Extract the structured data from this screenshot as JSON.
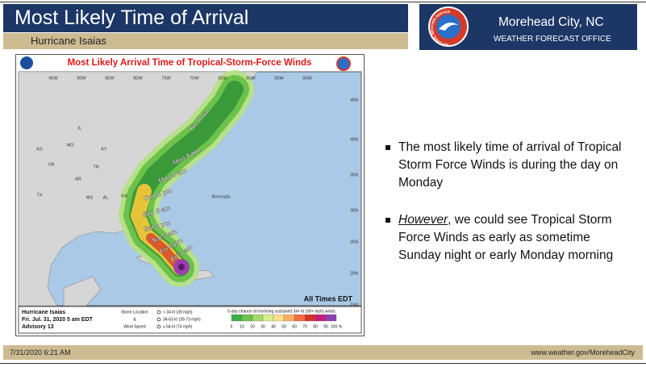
{
  "header": {
    "title": "Most Likely Time of Arrival",
    "subtitle": "Hurricane Isaias",
    "logo_text": "NATIONAL WEATHER SERVICE",
    "office_name": "Morehead City, NC",
    "office_type": "WEATHER FORECAST OFFICE"
  },
  "map": {
    "title": "Most Likely Arrival Time of Tropical-Storm-Force Winds",
    "lon_labels": [
      "95W",
      "90W",
      "85W",
      "80W",
      "75W",
      "70W",
      "65W",
      "60W",
      "55W",
      "50W"
    ],
    "lat_labels": [
      "45N",
      "40N",
      "35N",
      "30N",
      "25N",
      "20N",
      "15N"
    ],
    "time_labels": [
      "Tue 8 am",
      "Mon 8 pm",
      "Mon 8 am",
      "Sun 8 pm",
      "Sun 8 am",
      "Sat 8 pm",
      "Sat 8 am",
      "Fri 8 pm",
      "Fri 8 am"
    ],
    "place_labels": [
      "KS",
      "MO",
      "OK",
      "AR",
      "TX",
      "MS",
      "AL",
      "GA",
      "TN",
      "KY",
      "IL",
      "Bermuda"
    ],
    "note": "All Times EDT",
    "legend": {
      "storm": "Hurricane Isaias",
      "issued": "Fri. Jul. 31, 2020  5 am EDT",
      "advisory": "Advisory 13",
      "key_title_1": "Storm Location",
      "key_title_2": "&",
      "key_title_3": "Wind Speed",
      "key_low": "< 34 kt (39 mph)",
      "key_mid": "34-63 kt (39-73 mph)",
      "key_high": "≥ 64 kt (74 mph)",
      "scale_title": "5-day chance of receiving sustained 34+ kt (39+ mph) winds",
      "scale_labels": [
        "5",
        "10",
        "20",
        "30",
        "40",
        "50",
        "60",
        "70",
        "80",
        "90",
        "100 %"
      ]
    }
  },
  "bullets": [
    {
      "text": "The most likely time of arrival of Tropical Storm Force Winds is during the day on Monday"
    },
    {
      "emphasis": "However",
      "text": ", we could see Tropical Storm Force Winds as early as sometime Sunday night or early Monday morning"
    }
  ],
  "footer": {
    "date": "7/31/2020 6:21 AM",
    "url": "www.weather.gov/MoreheadCity"
  }
}
